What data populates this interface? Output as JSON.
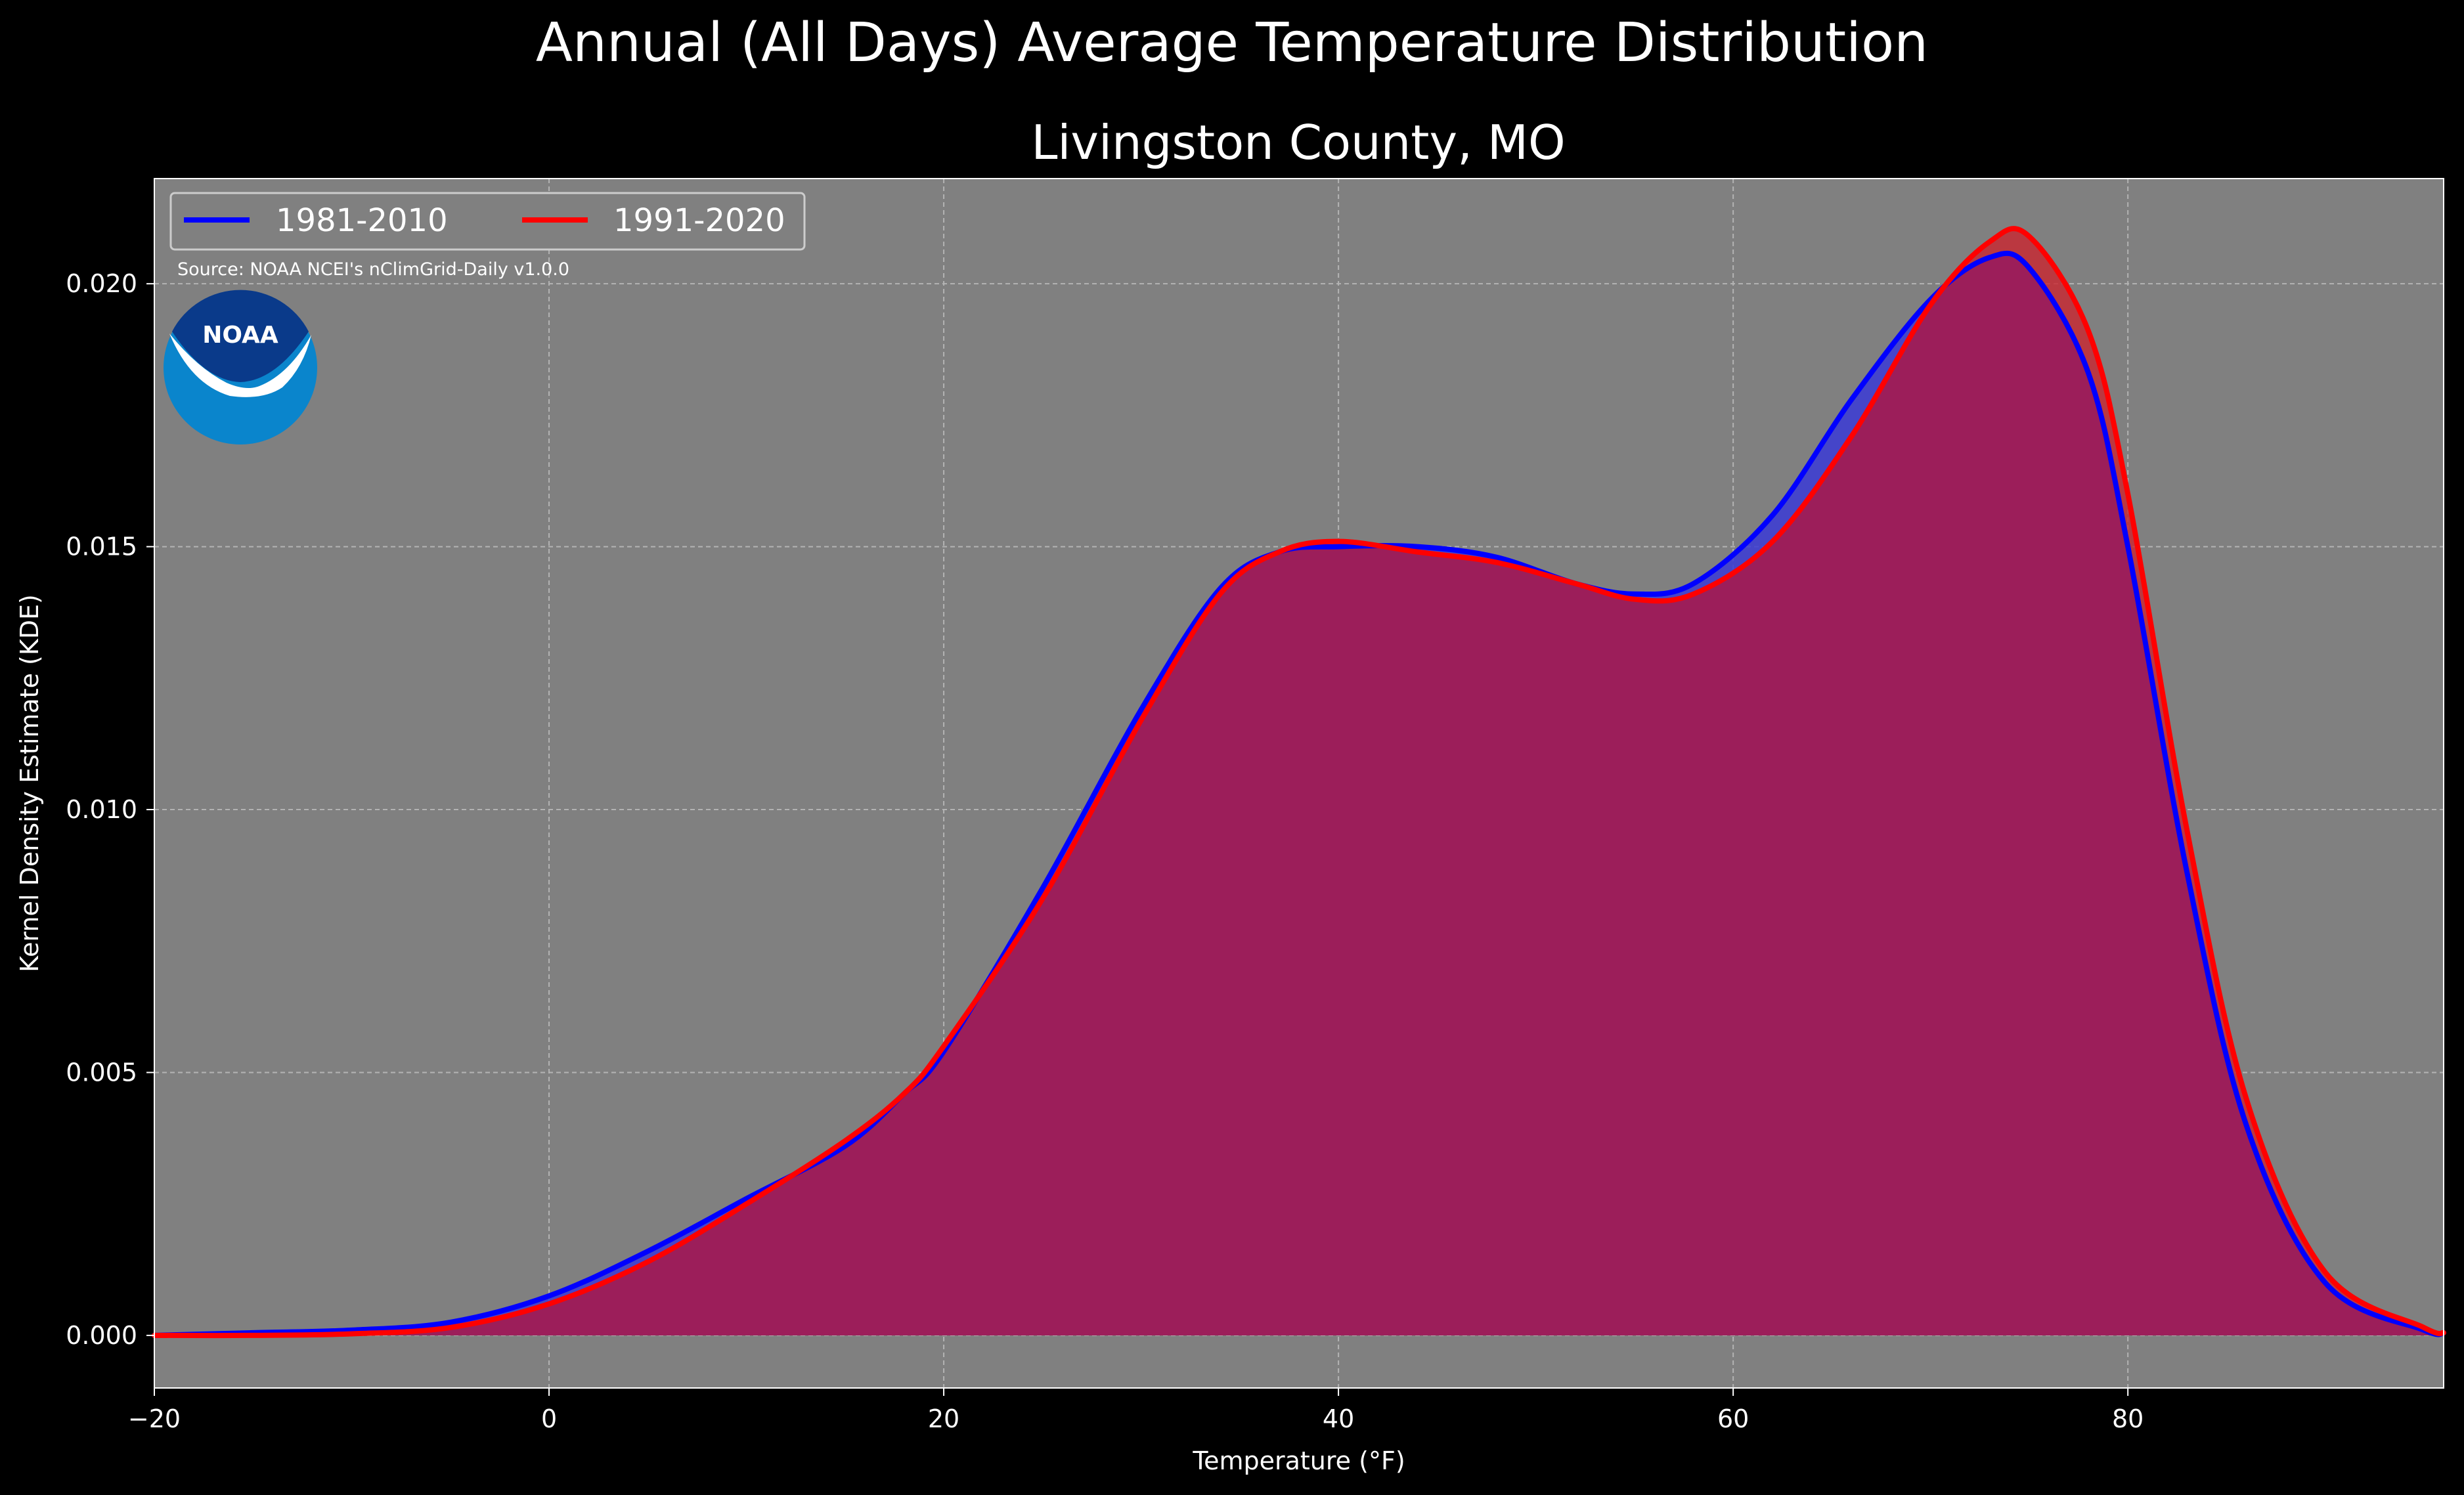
{
  "colors": {
    "figure_bg": "#000000",
    "plot_bg": "#808080",
    "grid": "#b3b3b3",
    "series_1981_2010": "#0000ff",
    "series_1991_2020": "#ff0000",
    "fill_1981_2010": "#3b3bd6",
    "fill_1991_2020": "#c9262f",
    "overlap_fill": "#9c1e5a",
    "noaa_dark": "#0a3a8a",
    "noaa_light": "#0a85cc"
  },
  "noaa_logo": {
    "text": "NOAA",
    "icon": "noaa-logo"
  },
  "chart_data": {
    "type": "area",
    "title": "Annual (All Days) Average Temperature Distribution",
    "subtitle": "Livingston County, MO",
    "xlabel": "Temperature (°F)",
    "ylabel": "Kernel Density Estimate (KDE)",
    "xlim": [
      -20,
      96
    ],
    "ylim": [
      -0.001,
      0.022
    ],
    "xticks": [
      -20,
      0,
      20,
      40,
      60,
      80
    ],
    "xtick_labels": [
      "−20",
      "0",
      "20",
      "40",
      "60",
      "80"
    ],
    "yticks": [
      0.0,
      0.005,
      0.01,
      0.015,
      0.02
    ],
    "ytick_labels": [
      "0.000",
      "0.005",
      "0.010",
      "0.015",
      "0.020"
    ],
    "grid": true,
    "legend_placement": "top-left",
    "annotation": "Source: NOAA NCEI's nClimGrid-Daily v1.0.0",
    "x": [
      -20,
      -15,
      -10,
      -5,
      0,
      5,
      10,
      15,
      18,
      20,
      25,
      30,
      34,
      37,
      40,
      44,
      48,
      52,
      55,
      58,
      62,
      66,
      70,
      73,
      75,
      78,
      80,
      83,
      86,
      90,
      95,
      96
    ],
    "series": [
      {
        "name": "1981-2010",
        "color": "#0000ff",
        "values": [
          0.0,
          5e-05,
          0.0001,
          0.00025,
          0.00075,
          0.0016,
          0.0026,
          0.0036,
          0.0046,
          0.0054,
          0.0085,
          0.0119,
          0.0142,
          0.0149,
          0.015,
          0.015,
          0.0148,
          0.0143,
          0.0141,
          0.0143,
          0.0156,
          0.0178,
          0.0197,
          0.0205,
          0.0203,
          0.0183,
          0.015,
          0.0088,
          0.004,
          0.001,
          0.0001,
          5e-05
        ]
      },
      {
        "name": "1991-2020",
        "color": "#ff0000",
        "values": [
          0.0,
          0.0,
          3e-05,
          0.00015,
          0.0006,
          0.0014,
          0.0025,
          0.0037,
          0.0046,
          0.0055,
          0.0083,
          0.0117,
          0.0141,
          0.0149,
          0.0151,
          0.0149,
          0.0147,
          0.0143,
          0.014,
          0.0141,
          0.0151,
          0.0171,
          0.0196,
          0.0208,
          0.0209,
          0.0191,
          0.016,
          0.0096,
          0.0045,
          0.0012,
          0.00015,
          5e-05
        ]
      }
    ]
  }
}
